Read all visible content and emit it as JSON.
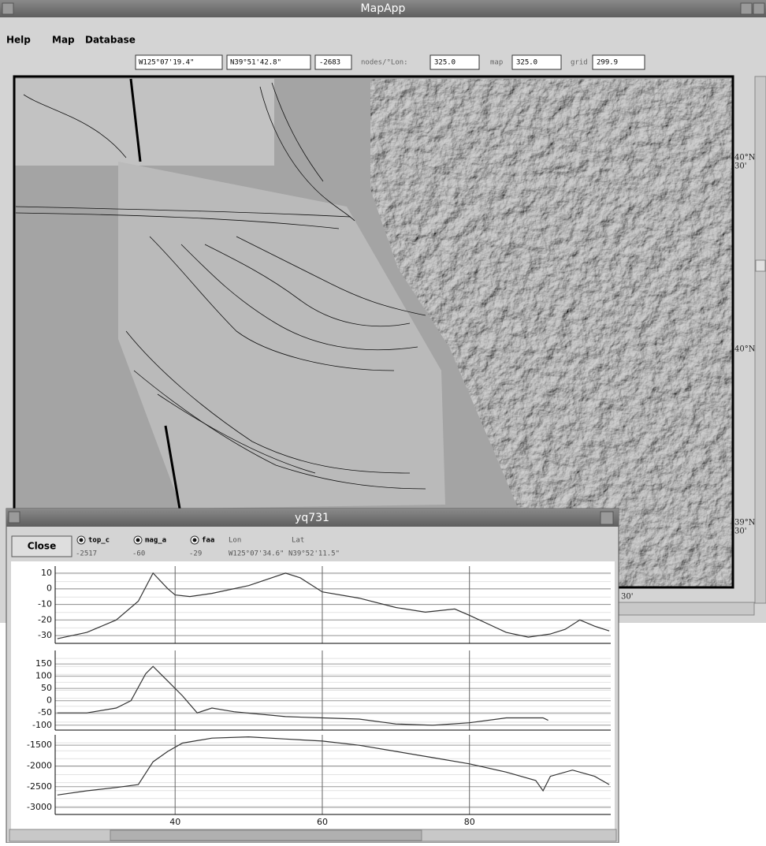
{
  "main_window": {
    "title": "MapApp",
    "menu": [
      "Help",
      "Map",
      "Database"
    ],
    "toolbar": {
      "lon": "W125°07'19.4\"",
      "lat": "N39°51'42.8\"",
      "depth": "-2683",
      "nodes_label": "nodes/°Lon:",
      "nodes": "325.0",
      "map_label": "map",
      "map": "325.0",
      "grid_label": "grid",
      "grid": "299.9"
    },
    "map_labels": [
      {
        "line1": "40°N",
        "line2": "30'"
      },
      {
        "line1": "40°N"
      },
      {
        "line1": "39°N",
        "line2": "30'"
      }
    ],
    "map_bottom_label": "30'"
  },
  "profile_window": {
    "title": "yq731",
    "close": "Close",
    "lon_label": "Lon",
    "lat_label": "Lat",
    "readouts": [
      "-2517",
      "-60",
      "-29"
    ],
    "lon": "W125°07'34.6\"",
    "lat": "N39°52'11.5\""
  },
  "chart_data": [
    {
      "type": "line",
      "x": [
        24,
        28,
        32,
        35,
        37,
        39,
        40,
        42,
        45,
        50,
        55,
        57,
        60,
        65,
        70,
        74,
        78,
        80,
        85,
        88,
        91,
        93,
        95,
        97,
        99
      ],
      "series": [
        {
          "name": "faa",
          "color": "#333333",
          "values": [
            -32,
            -28,
            -20,
            -8,
            10,
            0,
            -4,
            -5,
            -3,
            2,
            10,
            7,
            -2,
            -6,
            -12,
            -15,
            -13,
            -17,
            -28,
            -31,
            -29,
            -26,
            -20,
            -24,
            -27
          ]
        }
      ],
      "xlim": [
        23.7,
        99.2
      ],
      "ylim": [
        -35,
        14.5
      ],
      "yticks": [
        10,
        0,
        -10,
        -20,
        -30
      ]
    },
    {
      "type": "line",
      "x": [
        24,
        28,
        32,
        34,
        36,
        37,
        39,
        41,
        43,
        45,
        48,
        55,
        60,
        65,
        70,
        75,
        80,
        85,
        90,
        90.7
      ],
      "series": [
        {
          "name": "mag_a",
          "color": "#333333",
          "values": [
            -50,
            -50,
            -30,
            0,
            110,
            140,
            80,
            20,
            -50,
            -30,
            -45,
            -65,
            -70,
            -75,
            -95,
            -100,
            -90,
            -70,
            -70,
            -80
          ]
        }
      ],
      "xlim": [
        23.7,
        99.2
      ],
      "ylim": [
        -120,
        205
      ],
      "yticks": [
        150,
        100,
        50,
        0,
        -50,
        -100
      ]
    },
    {
      "type": "line",
      "x": [
        24,
        28,
        32,
        35,
        37,
        39,
        41,
        45,
        50,
        55,
        60,
        65,
        70,
        75,
        80,
        85,
        89,
        90,
        91,
        94,
        97,
        99
      ],
      "series": [
        {
          "name": "top_c",
          "color": "#333333",
          "values": [
            -2700,
            -2600,
            -2520,
            -2450,
            -1900,
            -1650,
            -1450,
            -1330,
            -1300,
            -1350,
            -1400,
            -1500,
            -1650,
            -1800,
            -1950,
            -2150,
            -2350,
            -2600,
            -2250,
            -2100,
            -2250,
            -2450
          ]
        }
      ],
      "xlim": [
        23.7,
        99.2
      ],
      "ylim": [
        -3170,
        -1250
      ],
      "yticks": [
        -1500,
        -2000,
        -2500,
        -3000
      ],
      "xticks": [
        40,
        60,
        80
      ]
    }
  ]
}
